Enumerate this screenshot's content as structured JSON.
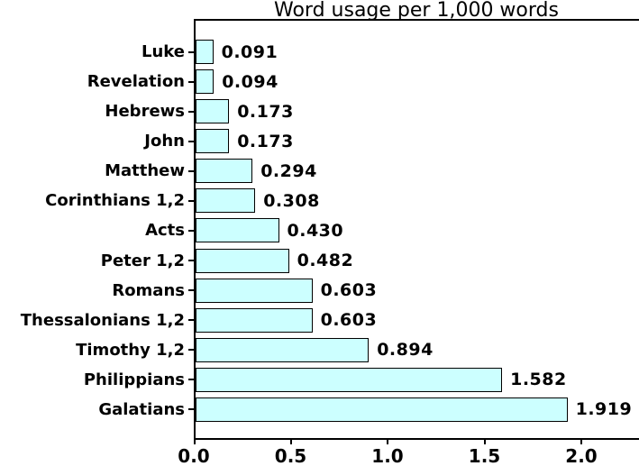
{
  "chart_data": {
    "type": "bar",
    "orientation": "horizontal",
    "title": "Word usage per 1,000 words",
    "categories": [
      "Luke",
      "Revelation",
      "Hebrews",
      "John",
      "Matthew",
      "Corinthians 1,2",
      "Acts",
      "Peter 1,2",
      "Romans",
      "Thessalonians 1,2",
      "Timothy 1,2",
      "Philippians",
      "Galatians"
    ],
    "values": [
      0.091,
      0.094,
      0.173,
      0.173,
      0.294,
      0.308,
      0.43,
      0.482,
      0.603,
      0.603,
      0.894,
      1.582,
      1.919
    ],
    "value_labels": [
      "0.091",
      "0.094",
      "0.173",
      "0.173",
      "0.294",
      "0.308",
      "0.430",
      "0.482",
      "0.603",
      "0.603",
      "0.894",
      "1.582",
      "1.919"
    ],
    "x_ticks": [
      0.0,
      0.5,
      1.0,
      1.5,
      2.0
    ],
    "x_tick_labels": [
      "0.0",
      "0.5",
      "1.0",
      "1.5",
      "2.0"
    ],
    "xlim": [
      0,
      2.3
    ],
    "xlabel": "",
    "ylabel": "",
    "grid": false,
    "legend": "none",
    "bar_color": "#ccffff",
    "bar_border_color": "#000000",
    "axis_color": "#000000",
    "background_color": "#ffffff"
  }
}
